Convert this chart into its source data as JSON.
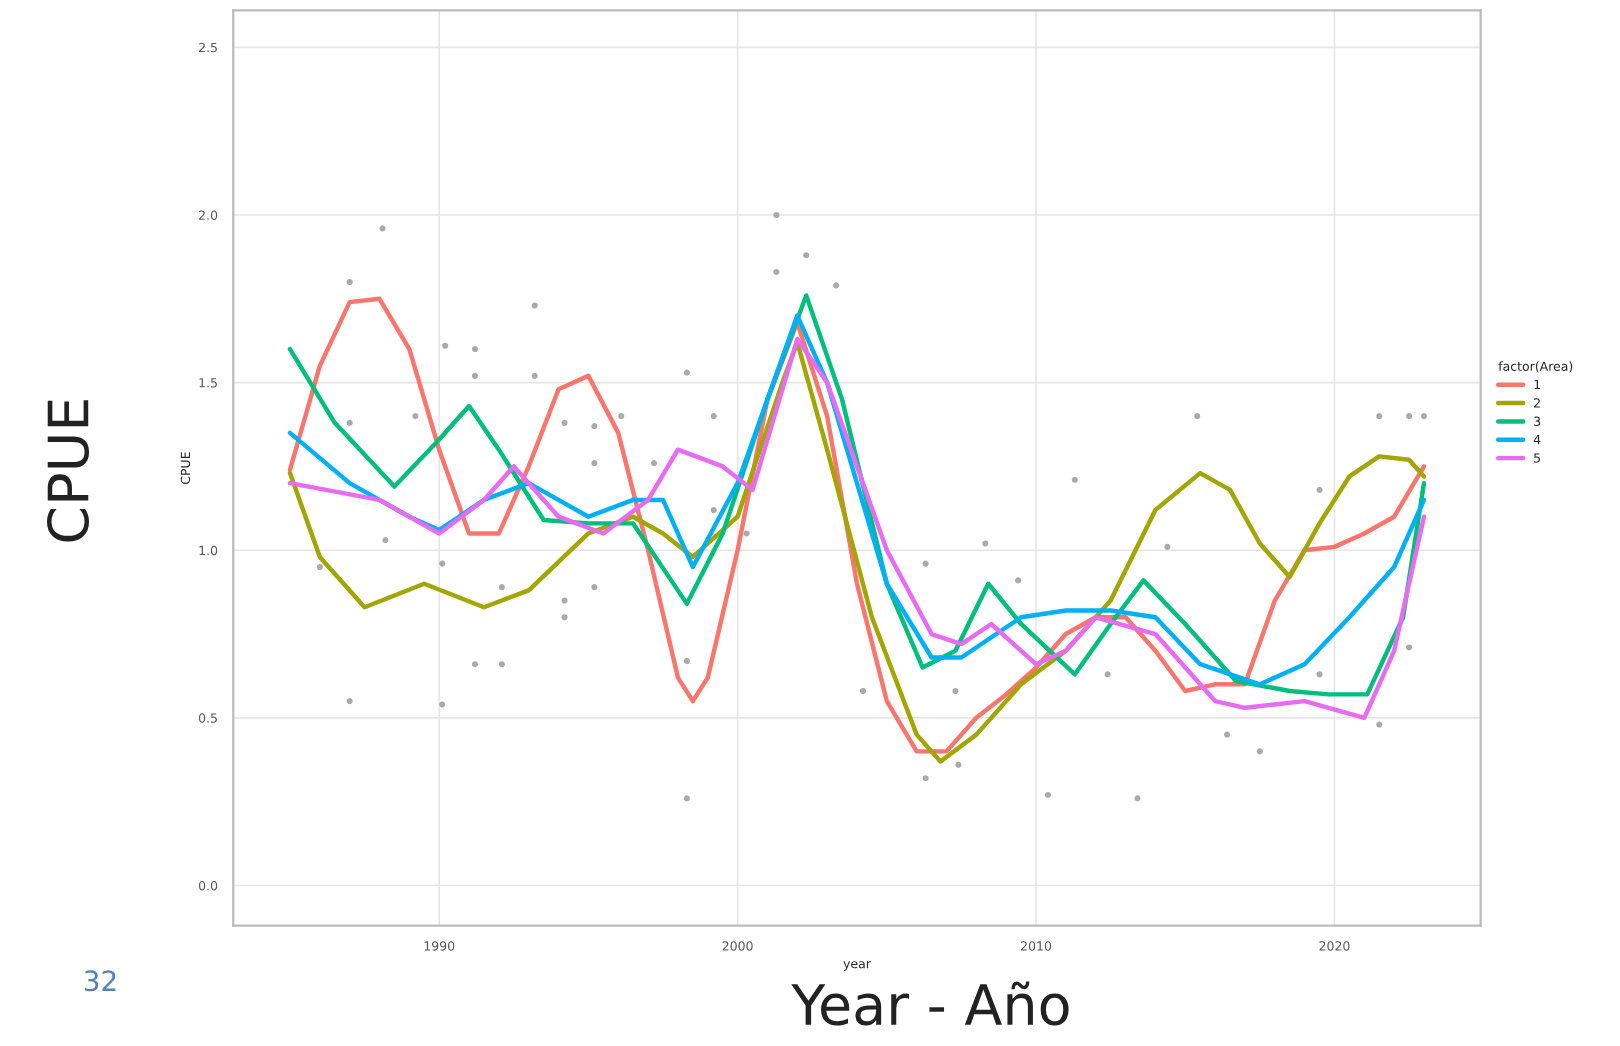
{
  "chart_data": {
    "type": "line",
    "xlabel": "year",
    "ylabel": "CPUE",
    "legend_title": "factor(Area)",
    "xlim": [
      1983.1,
      2024.9
    ],
    "xticks": [
      1990,
      2000,
      2010,
      2020
    ],
    "ylim": [
      -0.12,
      2.61
    ],
    "yticks": [
      {
        "value": 0,
        "label": "0.0"
      },
      0.5,
      {
        "value": 1,
        "label": "1.0"
      },
      1.5,
      {
        "value": 2,
        "label": "2.0"
      },
      2.5
    ],
    "grid": true,
    "legend": "right",
    "marker": "none",
    "line_style": "solid",
    "annotations": [
      "CPUE",
      "Year - Año",
      "32"
    ],
    "series": [
      {
        "name": "1",
        "color": "#f8766d",
        "x": [
          1985,
          1986,
          1987,
          1988,
          1989,
          1990,
          1991,
          1992,
          1993,
          1994,
          1995,
          1996,
          1997,
          1998,
          1998.5,
          1999,
          2000,
          2001,
          2002,
          2003,
          2004,
          2005,
          2006,
          2007,
          2008,
          2009,
          2010,
          2011,
          2012,
          2013,
          2014,
          2015,
          2016,
          2017,
          2018,
          2019,
          2020,
          2021,
          2022,
          2023
        ],
        "values": [
          1.24,
          1.55,
          1.74,
          1.75,
          1.6,
          1.3,
          1.05,
          1.05,
          1.25,
          1.48,
          1.52,
          1.35,
          1.0,
          0.62,
          0.55,
          0.62,
          1.0,
          1.45,
          1.68,
          1.4,
          0.9,
          0.55,
          0.4,
          0.4,
          0.5,
          0.57,
          0.65,
          0.75,
          0.8,
          0.8,
          0.7,
          0.58,
          0.6,
          0.6,
          0.85,
          1.0,
          1.01,
          1.05,
          1.1,
          1.25
        ]
      },
      {
        "name": "2",
        "color": "#a3a500",
        "x": [
          1985,
          1986,
          1987.5,
          1989.5,
          1991.5,
          1993,
          1995,
          1996.5,
          1997.5,
          1998.5,
          2000,
          2001.5,
          2002,
          2003,
          2004.5,
          2006,
          2006.8,
          2008,
          2009.5,
          2011,
          2012.5,
          2014,
          2015.5,
          2016.5,
          2017.5,
          2018.5,
          2019.5,
          2020.5,
          2021.5,
          2022.5,
          2023
        ],
        "values": [
          1.23,
          0.98,
          0.83,
          0.9,
          0.83,
          0.88,
          1.05,
          1.1,
          1.05,
          0.98,
          1.1,
          1.5,
          1.62,
          1.3,
          0.8,
          0.45,
          0.37,
          0.45,
          0.6,
          0.7,
          0.85,
          1.12,
          1.23,
          1.18,
          1.02,
          0.92,
          1.08,
          1.22,
          1.28,
          1.27,
          1.22
        ]
      },
      {
        "name": "3",
        "color": "#00bf7d",
        "x": [
          1985,
          1986.5,
          1988.5,
          1990,
          1991,
          1992,
          1993.5,
          1995,
          1996.5,
          1998.3,
          1999.5,
          2001,
          2002.3,
          2003.5,
          2005,
          2006.2,
          2007.3,
          2008.4,
          2009.5,
          2011.3,
          2012.5,
          2013.6,
          2015,
          2016.7,
          2018.5,
          2019.8,
          2021.1,
          2022.3,
          2023
        ],
        "values": [
          1.6,
          1.38,
          1.19,
          1.33,
          1.43,
          1.3,
          1.09,
          1.08,
          1.08,
          0.84,
          1.05,
          1.45,
          1.76,
          1.45,
          0.9,
          0.65,
          0.7,
          0.9,
          0.78,
          0.63,
          0.78,
          0.91,
          0.78,
          0.61,
          0.58,
          0.57,
          0.57,
          0.8,
          1.2
        ]
      },
      {
        "name": "4",
        "color": "#00b0f6",
        "x": [
          1985,
          1987,
          1989,
          1990,
          1991.5,
          1993,
          1995,
          1996.5,
          1997.5,
          1998.5,
          2000,
          2002,
          2003,
          2005,
          2006.5,
          2007.5,
          2009.5,
          2011,
          2012.5,
          2014,
          2015.5,
          2017.5,
          2019,
          2020.5,
          2022,
          2023
        ],
        "values": [
          1.35,
          1.2,
          1.1,
          1.06,
          1.15,
          1.2,
          1.1,
          1.15,
          1.15,
          0.95,
          1.2,
          1.7,
          1.5,
          0.9,
          0.68,
          0.68,
          0.8,
          0.82,
          0.82,
          0.8,
          0.66,
          0.6,
          0.66,
          0.8,
          0.95,
          1.15
        ]
      },
      {
        "name": "5",
        "color": "#e76bf3",
        "x": [
          1985,
          1988,
          1990,
          1991.5,
          1992.5,
          1994,
          1995.5,
          1997,
          1998,
          1999.5,
          2000.5,
          2002,
          2003,
          2005,
          2006.5,
          2007.5,
          2008.5,
          2010,
          2011,
          2012,
          2014,
          2016,
          2017,
          2019,
          2021,
          2022,
          2023
        ],
        "values": [
          1.2,
          1.15,
          1.05,
          1.15,
          1.25,
          1.1,
          1.05,
          1.15,
          1.3,
          1.25,
          1.18,
          1.63,
          1.5,
          1.0,
          0.75,
          0.72,
          0.78,
          0.66,
          0.7,
          0.8,
          0.75,
          0.55,
          0.53,
          0.55,
          0.5,
          0.7,
          1.1
        ]
      },
      {
        "type": "scatter",
        "color": "#aaaaaa",
        "marker": "circle",
        "x": [
          1988.1,
          1987,
          1993.2,
          1990.2,
          1991.2,
          1991.2,
          1993.2,
          1998.3,
          2001.3,
          2002.3,
          2003.3,
          2001.3,
          1987,
          1989.2,
          1994.2,
          1995.2,
          1996.1,
          1999.2,
          1997.2,
          1995.2,
          1988.2,
          1990.1,
          1992.1,
          1994.2,
          1994.2,
          1995.2,
          1991.2,
          1992.1,
          1987,
          1990.1,
          1998.3,
          1998.3,
          2000.3,
          1999.2,
          1986,
          2015.4,
          2021.5,
          2022.5,
          2023,
          2011.3,
          2008.3,
          2006.3,
          2014.4,
          2019.5,
          2009.4,
          2010.4,
          2013.4,
          2006.3,
          2016.4,
          2017.5,
          2021.5,
          2022.5,
          2007.4,
          2004.2,
          2012.4,
          2007.3,
          2019.5
        ],
        "values": [
          1.96,
          1.8,
          1.73,
          1.61,
          1.6,
          1.52,
          1.52,
          1.53,
          2.0,
          1.88,
          1.79,
          1.83,
          1.38,
          1.4,
          1.38,
          1.37,
          1.4,
          1.4,
          1.26,
          1.26,
          1.03,
          0.96,
          0.89,
          0.85,
          0.8,
          0.89,
          0.66,
          0.66,
          0.55,
          0.54,
          0.67,
          0.26,
          1.05,
          1.12,
          0.95,
          1.4,
          1.4,
          1.4,
          1.4,
          1.21,
          1.02,
          0.96,
          1.01,
          1.18,
          0.91,
          0.27,
          0.26,
          0.32,
          0.45,
          0.4,
          0.48,
          0.71,
          0.36,
          0.58,
          0.63,
          0.58,
          0.63
        ]
      }
    ]
  }
}
